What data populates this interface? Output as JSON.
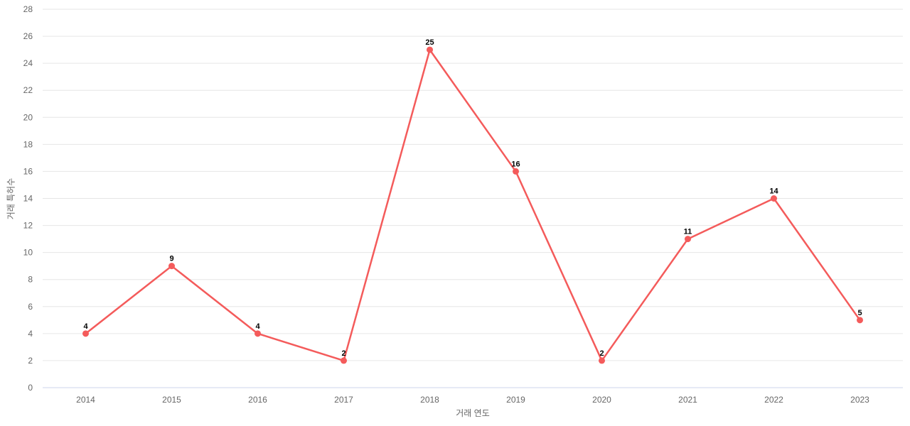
{
  "chart_data": {
    "type": "line",
    "title": "",
    "xlabel": "거래 연도",
    "ylabel": "거래 특허수",
    "categories": [
      "2014",
      "2015",
      "2016",
      "2017",
      "2018",
      "2019",
      "2020",
      "2021",
      "2022",
      "2023"
    ],
    "values": [
      4,
      9,
      4,
      2,
      25,
      16,
      2,
      11,
      14,
      5
    ],
    "ylim": [
      0,
      28
    ],
    "y_tick_step": 2,
    "y_tick_labels": [
      "0",
      "2",
      "4",
      "6",
      "8",
      "10",
      "12",
      "14",
      "16",
      "18",
      "20",
      "22",
      "24",
      "26",
      "28"
    ],
    "grid": true,
    "legend": "none",
    "data_labels": true,
    "marker": "circle"
  },
  "colors": {
    "line": "#f45b5b",
    "marker": "#f45b5b",
    "grid": "#e6e6e6",
    "axis_line": "#ccd6eb",
    "tick_label": "#666666",
    "axis_title": "#666666",
    "data_label": "#000000",
    "background": "#ffffff"
  }
}
